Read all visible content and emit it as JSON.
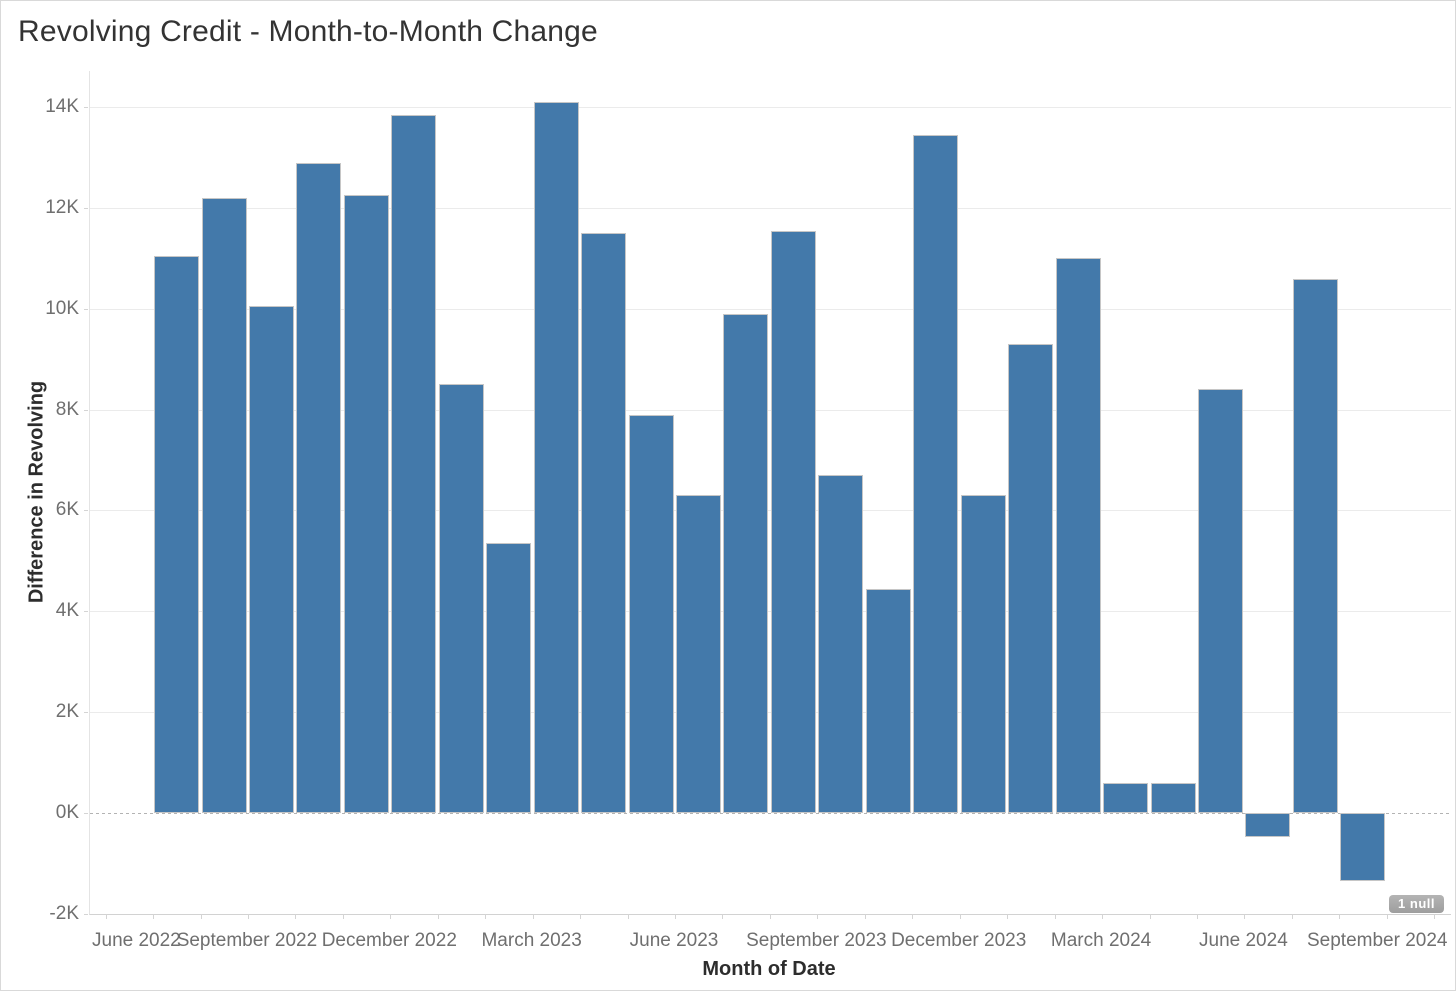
{
  "header": {
    "title": "Revolving Credit - Month-to-Month Change"
  },
  "chart_data": {
    "type": "bar",
    "title": "Revolving Credit - Month-to-Month Change",
    "xlabel": "Month of Date",
    "ylabel": "Difference in Revolving",
    "ylim": [
      -2000,
      14720
    ],
    "grid": "horizontal",
    "legend_position": "none",
    "bar_color": "#4379aa",
    "bar_border_color": "#c6c6c6",
    "zero_line": "dotted",
    "null_indicator": "1 null",
    "y_ticks": [
      {
        "label": "-2K",
        "value": -2000
      },
      {
        "label": "0K",
        "value": 0
      },
      {
        "label": "2K",
        "value": 2000
      },
      {
        "label": "4K",
        "value": 4000
      },
      {
        "label": "6K",
        "value": 6000
      },
      {
        "label": "8K",
        "value": 8000
      },
      {
        "label": "10K",
        "value": 10000
      },
      {
        "label": "12K",
        "value": 12000
      },
      {
        "label": "14K",
        "value": 14000
      }
    ],
    "x_ticks": [
      {
        "label": "June 2022",
        "month_index": 0
      },
      {
        "label": "September 2022",
        "month_index": 3
      },
      {
        "label": "December 2022",
        "month_index": 6
      },
      {
        "label": "March 2023",
        "month_index": 9
      },
      {
        "label": "June 2023",
        "month_index": 12
      },
      {
        "label": "September 2023",
        "month_index": 15
      },
      {
        "label": "December 2023",
        "month_index": 18
      },
      {
        "label": "March 2024",
        "month_index": 21
      },
      {
        "label": "June 2024",
        "month_index": 24
      },
      {
        "label": "September 2024",
        "month_index": 27
      }
    ],
    "monthly_minor_tick_count": 29,
    "points": [
      {
        "month": "June 2022",
        "value": null
      },
      {
        "month": "July 2022",
        "value": 11050
      },
      {
        "month": "August 2022",
        "value": 12200
      },
      {
        "month": "September 2022",
        "value": 10050
      },
      {
        "month": "October 2022",
        "value": 12900
      },
      {
        "month": "November 2022",
        "value": 12250
      },
      {
        "month": "December 2022",
        "value": 13850
      },
      {
        "month": "January 2023",
        "value": 8500
      },
      {
        "month": "February 2023",
        "value": 5350
      },
      {
        "month": "March 2023",
        "value": 14100
      },
      {
        "month": "April 2023",
        "value": 11500
      },
      {
        "month": "May 2023",
        "value": 7900
      },
      {
        "month": "June 2023",
        "value": 6300
      },
      {
        "month": "July 2023",
        "value": 9900
      },
      {
        "month": "August 2023",
        "value": 11550
      },
      {
        "month": "September 2023",
        "value": 6700
      },
      {
        "month": "October 2023",
        "value": 4450
      },
      {
        "month": "November 2023",
        "value": 13450
      },
      {
        "month": "December 2023",
        "value": 6300
      },
      {
        "month": "January 2024",
        "value": 9300
      },
      {
        "month": "February 2024",
        "value": 11000
      },
      {
        "month": "March 2024",
        "value": 600
      },
      {
        "month": "April 2024",
        "value": 600
      },
      {
        "month": "May 2024",
        "value": 8400
      },
      {
        "month": "June 2024",
        "value": -470
      },
      {
        "month": "July 2024",
        "value": 10600
      },
      {
        "month": "August 2024",
        "value": -1350
      }
    ]
  }
}
